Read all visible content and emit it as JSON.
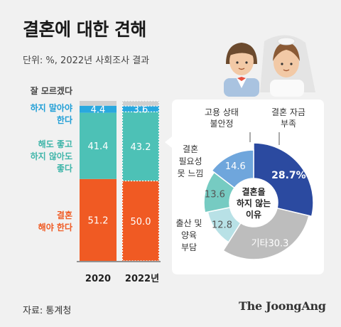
{
  "title": "결혼에 대한 견해",
  "subtitle": "단위: %, 2022년 사회조사 결과",
  "source": "자료: 통계청",
  "brand": "The JoongAng",
  "colors": {
    "orange": "#f05a23",
    "teal": "#4dc1b6",
    "cyan": "#29a8df",
    "grey": "#cfcfcf",
    "navy": "#2b4aa0",
    "blue": "#6fa6dc",
    "lightTeal": "#76cbc2",
    "paleTeal": "#b8e1e6",
    "donutGrey": "#bdbdbd"
  },
  "chart_data": [
    {
      "type": "bar",
      "stacked": true,
      "categories": [
        "2020",
        "2022년"
      ],
      "series": [
        {
          "name": "결혼 해야 한다",
          "values": [
            51.2,
            50.0
          ],
          "labels": [
            "51.2",
            "50.0"
          ],
          "color": "#f05a23"
        },
        {
          "name": "해도 좋고 하지 않아도 좋다",
          "values": [
            41.4,
            43.2
          ],
          "labels": [
            "41.4",
            "43.2"
          ],
          "color": "#4dc1b6"
        },
        {
          "name": "하지 말아야 한다",
          "values": [
            4.4,
            3.6
          ],
          "labels": [
            "4.4",
            "3.6"
          ],
          "color": "#29a8df"
        },
        {
          "name": "잘 모르겠다",
          "values": [
            3.0,
            3.2
          ],
          "labels": [
            "",
            ""
          ],
          "color": "#cfcfcf"
        }
      ]
    },
    {
      "type": "pie",
      "donut": true,
      "center_label": [
        "결혼을",
        "하지 않는",
        "이유"
      ],
      "slices": [
        {
          "name": "결혼 자금 부족",
          "value": 28.7,
          "label": "28.7%",
          "color": "#2b4aa0"
        },
        {
          "name": "기타",
          "value": 30.3,
          "label": "30.3",
          "color": "#bdbdbd"
        },
        {
          "name": "출산 및 양육 부담",
          "value": 12.8,
          "label": "12.8",
          "color": "#b8e1e6"
        },
        {
          "name": "결혼 필요성 못 느낌",
          "value": 13.6,
          "label": "13.6",
          "color": "#76cbc2"
        },
        {
          "name": "고용 상태 불안정",
          "value": 14.6,
          "label": "14.6",
          "color": "#6fa6dc"
        }
      ]
    }
  ],
  "legend": {
    "unknown": "잘 모르겠다",
    "shouldnt": [
      "하지 말아야",
      "한다"
    ],
    "either": [
      "해도 좋고",
      "하지 않아도",
      "좋다"
    ],
    "should": [
      "결혼",
      "해야 한다"
    ]
  },
  "donut_labels": {
    "job": [
      "고용 상태",
      "불안정"
    ],
    "money": [
      "결혼 자금",
      "부족"
    ],
    "need": [
      "결혼",
      "필요성",
      "못 느낌"
    ],
    "birth": [
      "출산 및",
      "양육",
      "부담"
    ],
    "other": "기타"
  }
}
